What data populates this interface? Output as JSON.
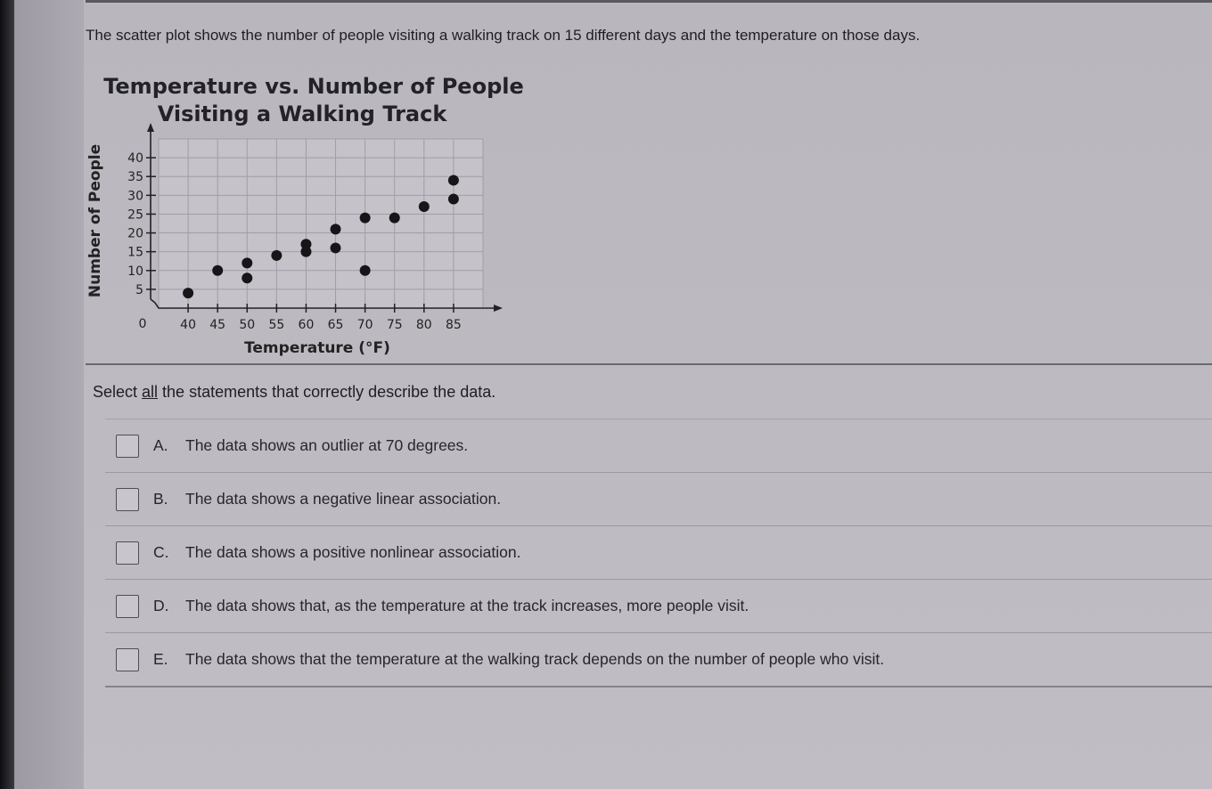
{
  "intro_text": "The scatter plot shows the number of people visiting a walking track on 15 different days and the temperature on those days.",
  "chart_data": {
    "type": "scatter",
    "title_line1": "Temperature vs. Number of People",
    "title_line2": "Visiting a Walking Track",
    "xlabel": "Temperature (°F)",
    "ylabel": "Number of People",
    "x_ticks": [
      40,
      45,
      50,
      55,
      60,
      65,
      70,
      75,
      80,
      85
    ],
    "y_ticks": [
      5,
      10,
      15,
      20,
      25,
      30,
      35,
      40
    ],
    "origin_label": "0",
    "xlim": [
      35,
      90
    ],
    "ylim": [
      0,
      45
    ],
    "grid": true,
    "points": [
      {
        "x": 40,
        "y": 4
      },
      {
        "x": 45,
        "y": 10
      },
      {
        "x": 50,
        "y": 12
      },
      {
        "x": 50,
        "y": 8
      },
      {
        "x": 55,
        "y": 14
      },
      {
        "x": 60,
        "y": 17
      },
      {
        "x": 60,
        "y": 15
      },
      {
        "x": 65,
        "y": 21
      },
      {
        "x": 65,
        "y": 16
      },
      {
        "x": 70,
        "y": 24
      },
      {
        "x": 70,
        "y": 10
      },
      {
        "x": 75,
        "y": 24
      },
      {
        "x": 80,
        "y": 27
      },
      {
        "x": 85,
        "y": 34
      },
      {
        "x": 85,
        "y": 29
      }
    ]
  },
  "prompt": {
    "before": "Select ",
    "emph": "all",
    "after": " the statements that correctly describe the data."
  },
  "options": [
    {
      "letter": "A.",
      "text": "The data shows an outlier at 70 degrees."
    },
    {
      "letter": "B.",
      "text": "The data shows a negative linear association."
    },
    {
      "letter": "C.",
      "text": "The data shows a positive nonlinear association."
    },
    {
      "letter": "D.",
      "text": "The data shows that, as the temperature at the track increases, more people visit."
    },
    {
      "letter": "E.",
      "text": "The data shows that the temperature at the walking track depends on the number of people who visit."
    }
  ]
}
